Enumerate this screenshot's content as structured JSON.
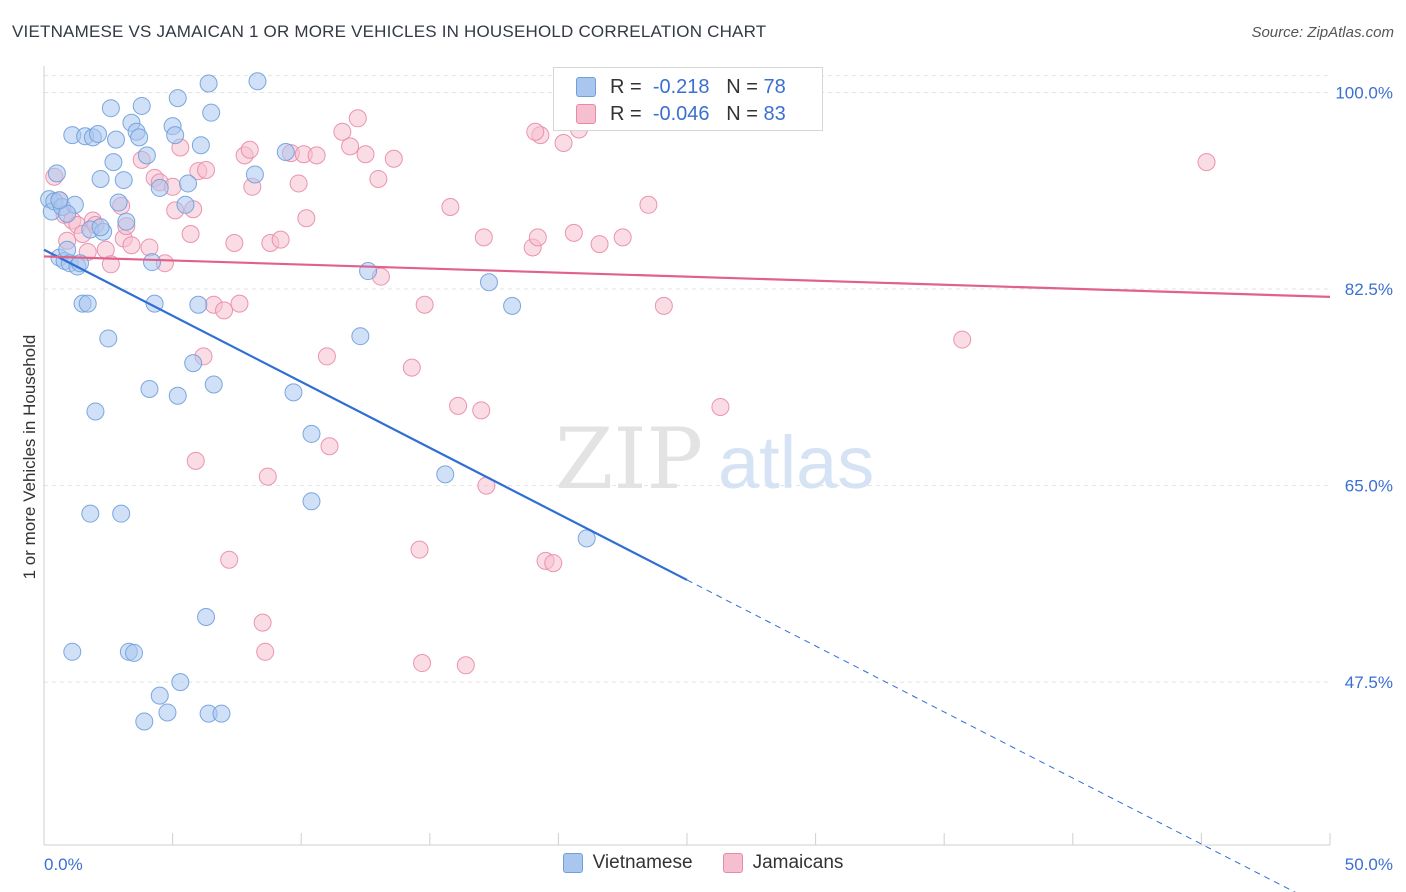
{
  "title": "VIETNAMESE VS JAMAICAN 1 OR MORE VEHICLES IN HOUSEHOLD CORRELATION CHART",
  "source": "Source: ZipAtlas.com",
  "watermark": {
    "zip": "ZIP",
    "atlas": "atlas"
  },
  "colors": {
    "blue_fill": "#a9c6ef",
    "blue_stroke": "#6f9fdc",
    "blue_line": "#2f6fd3",
    "pink_fill": "#f6bfd0",
    "pink_stroke": "#e98aa8",
    "pink_line": "#e0618c",
    "tick_label": "#3b6fd1",
    "grid": "#e2e2e2"
  },
  "legend": {
    "rows": [
      {
        "r_label": "R =",
        "r_value": "-0.218",
        "n_label": "N =",
        "n_value": "78"
      },
      {
        "r_label": "R =",
        "r_value": "-0.046",
        "n_label": "N =",
        "n_value": "83"
      }
    ]
  },
  "bottom_legend": [
    "Vietnamese",
    "Jamaicans"
  ],
  "chart_data": {
    "type": "scatter",
    "title": "VIETNAMESE VS JAMAICAN 1 OR MORE VEHICLES IN HOUSEHOLD CORRELATION CHART",
    "xlabel": "",
    "ylabel": "1 or more Vehicles in Household",
    "xlim": [
      0,
      50
    ],
    "ylim": [
      33,
      102
    ],
    "x_tick_labels": [
      "0.0%",
      "50.0%"
    ],
    "y_ticks": [
      47.5,
      65.0,
      82.5,
      100.0
    ],
    "y_tick_labels": [
      "47.5%",
      "65.0%",
      "82.5%",
      "100.0%"
    ],
    "grid": true,
    "legend_position": "top-center",
    "series": [
      {
        "name": "Vietnamese",
        "points": [
          [
            0.2,
            90.5
          ],
          [
            0.3,
            89.4
          ],
          [
            0.5,
            92.8
          ],
          [
            0.4,
            90.3
          ],
          [
            0.7,
            89.8
          ],
          [
            0.6,
            85.3
          ],
          [
            0.8,
            85.0
          ],
          [
            0.9,
            86.0
          ],
          [
            1.0,
            84.8
          ],
          [
            1.2,
            90.0
          ],
          [
            1.1,
            96.2
          ],
          [
            1.3,
            84.5
          ],
          [
            1.4,
            84.8
          ],
          [
            1.5,
            81.2
          ],
          [
            1.6,
            96.1
          ],
          [
            1.7,
            81.2
          ],
          [
            1.8,
            87.8
          ],
          [
            1.9,
            96.0
          ],
          [
            2.0,
            71.6
          ],
          [
            1.8,
            62.5
          ],
          [
            1.1,
            50.2
          ],
          [
            2.1,
            96.3
          ],
          [
            2.2,
            92.3
          ],
          [
            2.3,
            87.6
          ],
          [
            2.5,
            78.1
          ],
          [
            2.6,
            98.6
          ],
          [
            2.7,
            93.8
          ],
          [
            2.8,
            95.8
          ],
          [
            2.9,
            90.2
          ],
          [
            3.0,
            62.5
          ],
          [
            3.1,
            92.2
          ],
          [
            3.2,
            88.5
          ],
          [
            3.3,
            50.2
          ],
          [
            3.4,
            97.3
          ],
          [
            3.5,
            50.1
          ],
          [
            3.6,
            96.5
          ],
          [
            3.7,
            96.0
          ],
          [
            3.8,
            98.8
          ],
          [
            4.0,
            94.4
          ],
          [
            4.1,
            73.6
          ],
          [
            4.2,
            84.9
          ],
          [
            4.3,
            81.2
          ],
          [
            4.5,
            91.5
          ],
          [
            3.9,
            44.0
          ],
          [
            4.5,
            46.3
          ],
          [
            4.8,
            44.8
          ],
          [
            5.0,
            97.0
          ],
          [
            5.1,
            96.2
          ],
          [
            5.2,
            73.0
          ],
          [
            5.3,
            47.5
          ],
          [
            5.2,
            99.5
          ],
          [
            5.5,
            90.0
          ],
          [
            5.6,
            91.9
          ],
          [
            5.8,
            75.9
          ],
          [
            6.0,
            81.1
          ],
          [
            6.1,
            95.3
          ],
          [
            6.3,
            53.3
          ],
          [
            6.4,
            100.8
          ],
          [
            6.5,
            98.2
          ],
          [
            6.6,
            74.0
          ],
          [
            6.4,
            44.7
          ],
          [
            6.9,
            44.7
          ],
          [
            8.2,
            92.7
          ],
          [
            8.3,
            101.0
          ],
          [
            9.4,
            94.7
          ],
          [
            9.7,
            73.3
          ],
          [
            10.4,
            69.6
          ],
          [
            10.4,
            63.6
          ],
          [
            12.3,
            78.3
          ],
          [
            12.6,
            84.1
          ],
          [
            15.6,
            66.0
          ],
          [
            17.3,
            83.1
          ],
          [
            18.2,
            81.0
          ],
          [
            21.1,
            60.3
          ],
          [
            13.0,
            103.5
          ],
          [
            0.9,
            89.2
          ],
          [
            2.2,
            88.0
          ],
          [
            0.6,
            90.4
          ]
        ]
      },
      {
        "name": "Jamaicans",
        "points": [
          [
            0.4,
            92.5
          ],
          [
            0.6,
            90.4
          ],
          [
            0.8,
            89.1
          ],
          [
            0.9,
            86.8
          ],
          [
            1.1,
            88.6
          ],
          [
            1.3,
            88.2
          ],
          [
            1.5,
            87.4
          ],
          [
            1.7,
            85.8
          ],
          [
            1.9,
            88.6
          ],
          [
            2.0,
            88.2
          ],
          [
            2.4,
            86.0
          ],
          [
            2.6,
            84.7
          ],
          [
            3.0,
            89.9
          ],
          [
            3.1,
            87.0
          ],
          [
            3.2,
            88.1
          ],
          [
            3.4,
            86.4
          ],
          [
            3.8,
            94.0
          ],
          [
            4.1,
            86.2
          ],
          [
            4.3,
            92.4
          ],
          [
            4.5,
            92.0
          ],
          [
            4.7,
            84.8
          ],
          [
            5.0,
            91.6
          ],
          [
            5.1,
            89.5
          ],
          [
            5.3,
            95.1
          ],
          [
            5.7,
            87.4
          ],
          [
            5.8,
            89.6
          ],
          [
            6.0,
            93.0
          ],
          [
            6.2,
            76.5
          ],
          [
            6.3,
            93.1
          ],
          [
            5.9,
            67.2
          ],
          [
            6.6,
            81.1
          ],
          [
            7.0,
            80.6
          ],
          [
            7.2,
            58.4
          ],
          [
            7.4,
            86.6
          ],
          [
            7.6,
            81.2
          ],
          [
            7.8,
            94.4
          ],
          [
            8.0,
            94.9
          ],
          [
            8.1,
            91.6
          ],
          [
            8.5,
            52.8
          ],
          [
            8.6,
            50.2
          ],
          [
            8.7,
            65.8
          ],
          [
            8.8,
            86.6
          ],
          [
            9.2,
            86.9
          ],
          [
            9.6,
            94.6
          ],
          [
            9.9,
            91.9
          ],
          [
            10.1,
            94.5
          ],
          [
            10.2,
            88.8
          ],
          [
            10.6,
            94.4
          ],
          [
            11.0,
            76.5
          ],
          [
            11.1,
            68.5
          ],
          [
            11.6,
            96.5
          ],
          [
            11.9,
            95.2
          ],
          [
            12.2,
            97.7
          ],
          [
            12.5,
            94.5
          ],
          [
            13.0,
            92.3
          ],
          [
            13.1,
            83.6
          ],
          [
            13.6,
            94.1
          ],
          [
            14.3,
            75.5
          ],
          [
            14.6,
            59.3
          ],
          [
            14.8,
            81.1
          ],
          [
            14.7,
            49.2
          ],
          [
            15.8,
            89.8
          ],
          [
            16.1,
            72.1
          ],
          [
            16.4,
            49.0
          ],
          [
            17.0,
            71.7
          ],
          [
            17.1,
            87.1
          ],
          [
            17.2,
            65.0
          ],
          [
            19.0,
            86.2
          ],
          [
            19.2,
            87.1
          ],
          [
            19.3,
            96.2
          ],
          [
            20.2,
            95.5
          ],
          [
            19.1,
            96.5
          ],
          [
            20.6,
            87.5
          ],
          [
            20.8,
            96.7
          ],
          [
            19.5,
            58.3
          ],
          [
            19.8,
            58.1
          ],
          [
            21.6,
            86.5
          ],
          [
            22.5,
            87.1
          ],
          [
            23.5,
            90.0
          ],
          [
            24.1,
            81.0
          ],
          [
            26.3,
            72.0
          ],
          [
            35.7,
            78.0
          ],
          [
            45.2,
            93.8
          ]
        ]
      }
    ],
    "trend_lines": [
      {
        "series": "Vietnamese",
        "x": [
          0,
          50
        ],
        "y": [
          86.0,
          27.2
        ],
        "solid_until_x": 25
      },
      {
        "series": "Jamaicans",
        "x": [
          0,
          50
        ],
        "y": [
          85.4,
          81.8
        ]
      }
    ]
  }
}
